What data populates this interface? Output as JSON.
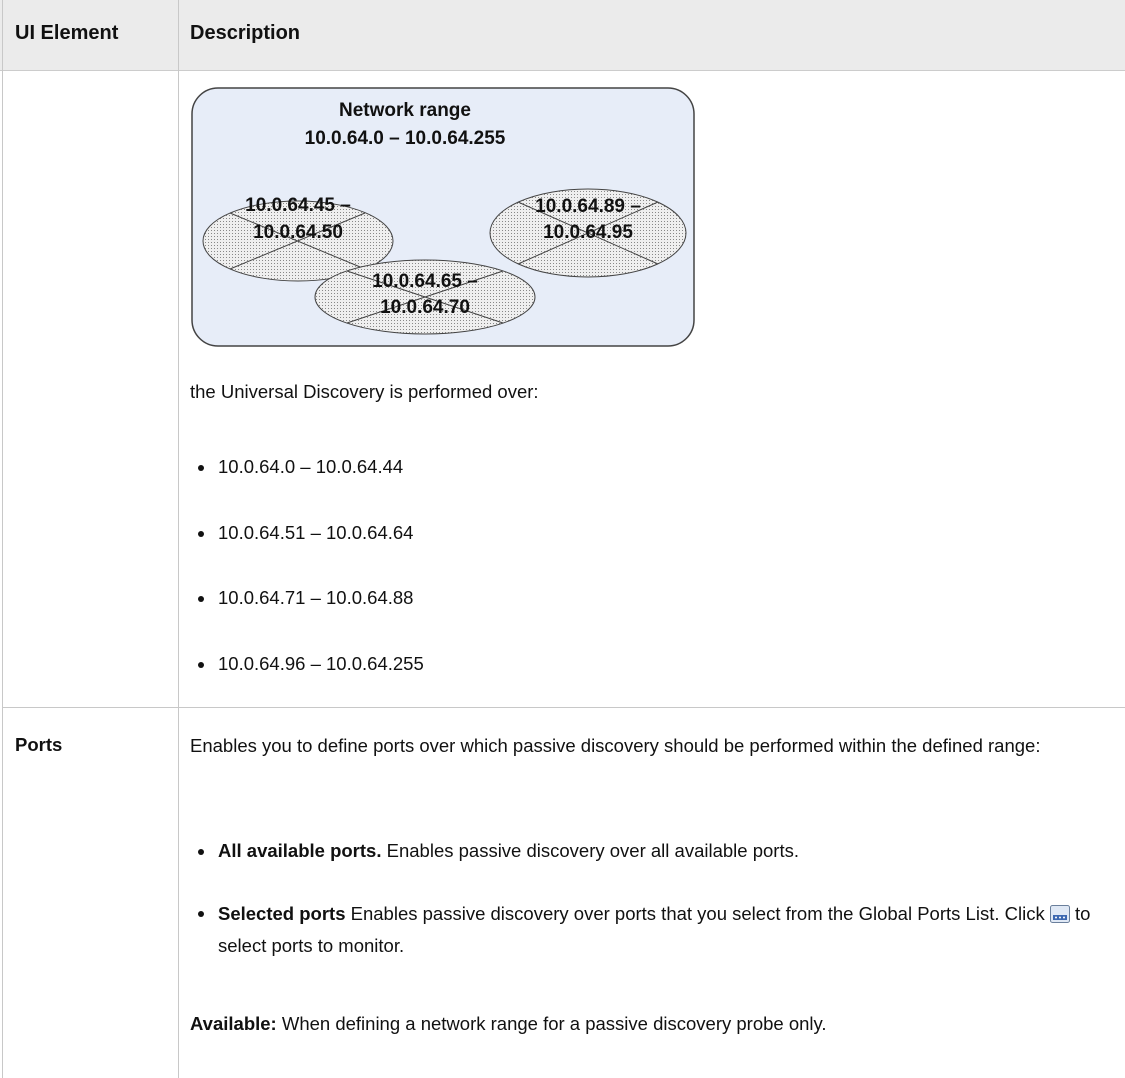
{
  "table": {
    "headers": [
      "UI Element",
      "Description"
    ],
    "rows": [
      {
        "diagram": {
          "title": "Network range",
          "range": "10.0.64.0 – 10.0.64.255",
          "excluded": [
            [
              "10.0.64.45 –",
              "10.0.64.50"
            ],
            [
              "10.0.64.89 –",
              "10.0.64.95"
            ],
            [
              "10.0.64.65 –",
              "10.0.64.70"
            ]
          ]
        },
        "text": "the Universal Discovery is performed over:",
        "items": [
          "10.0.64.0 – 10.0.64.44",
          "10.0.64.51 – 10.0.64.64",
          "10.0.64.71 – 10.0.64.88",
          "10.0.64.96 – 10.0.64.255"
        ]
      },
      {
        "element": "Ports",
        "text": "Enables you to define ports over which passive discovery should be performed within the defined range:",
        "items": [
          {
            "term": "All available ports.",
            "text": "Enables passive discovery over all available ports."
          },
          {
            "term": "Selected ports",
            "text_before": "Enables passive discovery over ports that you select from the Global Ports List. Click",
            "text_after": "to select ports to monitor."
          }
        ],
        "note": {
          "term": "Available:",
          "text": "When defining a network range for a passive discovery probe only."
        }
      }
    ]
  }
}
